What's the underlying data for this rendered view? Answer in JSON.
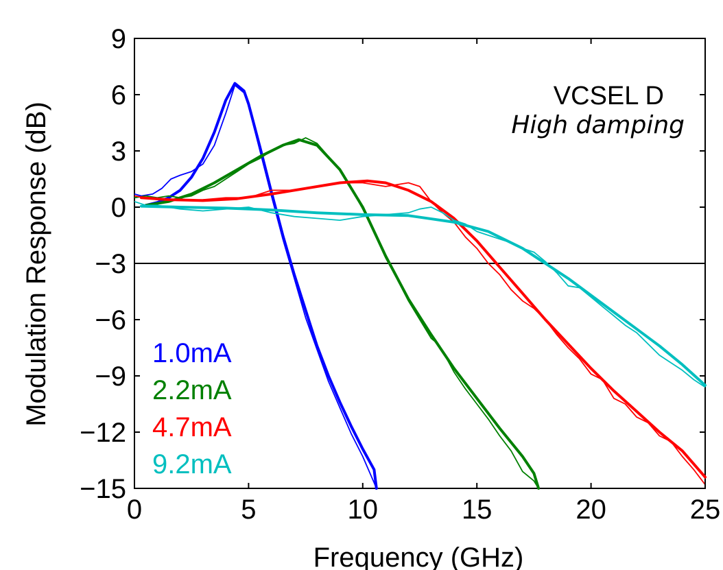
{
  "chart_data": {
    "type": "line",
    "title": "",
    "xlabel": "Frequency (GHz)",
    "ylabel": "Modulation Response (dB)",
    "xlim": [
      0,
      25
    ],
    "ylim": [
      -15,
      9
    ],
    "xticks": [
      0,
      5,
      10,
      15,
      20,
      25
    ],
    "xtick_labels": [
      "0",
      "5",
      "10",
      "15",
      "20",
      "25"
    ],
    "yticks": [
      9,
      6,
      3,
      0,
      -3,
      -6,
      -9,
      -12,
      -15
    ],
    "ytick_labels": [
      "9",
      "6",
      "3",
      "0",
      "−3",
      "−6",
      "−9",
      "−12",
      "−15"
    ],
    "grid": false,
    "legend_position": "bottom-left",
    "reference_line": {
      "y": -3,
      "color": "#000000"
    },
    "annotations": {
      "line1": "VCSEL D",
      "line2": "High damping"
    },
    "series": [
      {
        "name": "1.0mA",
        "color": "#0000ff",
        "fit": [
          [
            0.5,
            0.1
          ],
          [
            1.0,
            0.25
          ],
          [
            1.5,
            0.5
          ],
          [
            2.0,
            0.9
          ],
          [
            2.5,
            1.6
          ],
          [
            3.0,
            2.6
          ],
          [
            3.5,
            4.0
          ],
          [
            4.0,
            5.7
          ],
          [
            4.4,
            6.6
          ],
          [
            4.8,
            6.2
          ],
          [
            5.0,
            5.5
          ],
          [
            5.5,
            3.2
          ],
          [
            6.0,
            0.8
          ],
          [
            6.5,
            -1.5
          ],
          [
            7.0,
            -3.6
          ],
          [
            7.5,
            -5.5
          ],
          [
            8.0,
            -7.4
          ],
          [
            8.5,
            -9.0
          ],
          [
            9.0,
            -10.4
          ],
          [
            9.5,
            -11.7
          ],
          [
            10.0,
            -12.9
          ],
          [
            10.5,
            -14.0
          ],
          [
            10.6,
            -15.0
          ]
        ],
        "measured": [
          [
            0.0,
            0.7
          ],
          [
            0.3,
            0.6
          ],
          [
            0.8,
            0.7
          ],
          [
            1.2,
            1.0
          ],
          [
            1.6,
            1.5
          ],
          [
            2.0,
            1.7
          ],
          [
            2.5,
            1.9
          ],
          [
            3.0,
            2.3
          ],
          [
            3.5,
            3.3
          ],
          [
            4.0,
            5.0
          ],
          [
            4.4,
            6.5
          ],
          [
            4.8,
            6.1
          ],
          [
            5.0,
            5.4
          ],
          [
            5.5,
            3.0
          ],
          [
            6.0,
            0.6
          ],
          [
            6.5,
            -1.7
          ],
          [
            7.0,
            -3.8
          ],
          [
            7.5,
            -5.9
          ],
          [
            8.0,
            -7.6
          ],
          [
            8.5,
            -9.3
          ],
          [
            9.0,
            -10.7
          ],
          [
            9.5,
            -12.1
          ],
          [
            10.0,
            -13.3
          ],
          [
            10.5,
            -14.7
          ],
          [
            10.6,
            -15.0
          ]
        ]
      },
      {
        "name": "2.2mA",
        "color": "#008000",
        "fit": [
          [
            0.5,
            0.1
          ],
          [
            1.5,
            0.3
          ],
          [
            2.5,
            0.7
          ],
          [
            3.5,
            1.3
          ],
          [
            4.5,
            2.0
          ],
          [
            5.5,
            2.7
          ],
          [
            6.5,
            3.3
          ],
          [
            7.2,
            3.6
          ],
          [
            8.0,
            3.3
          ],
          [
            9.0,
            2.0
          ],
          [
            10.0,
            0.0
          ],
          [
            11.0,
            -2.6
          ],
          [
            12.0,
            -4.9
          ],
          [
            13.0,
            -6.8
          ],
          [
            14.0,
            -8.6
          ],
          [
            15.0,
            -10.2
          ],
          [
            16.0,
            -11.8
          ],
          [
            17.0,
            -13.3
          ],
          [
            17.5,
            -14.2
          ],
          [
            17.7,
            -15.0
          ]
        ],
        "measured": [
          [
            0.0,
            0.5
          ],
          [
            0.5,
            0.6
          ],
          [
            1.0,
            0.5
          ],
          [
            1.5,
            0.6
          ],
          [
            2.0,
            0.5
          ],
          [
            2.5,
            0.6
          ],
          [
            3.0,
            0.9
          ],
          [
            3.5,
            1.1
          ],
          [
            4.0,
            1.5
          ],
          [
            4.5,
            1.9
          ],
          [
            5.0,
            2.3
          ],
          [
            5.5,
            2.6
          ],
          [
            6.0,
            3.0
          ],
          [
            6.5,
            3.3
          ],
          [
            7.0,
            3.4
          ],
          [
            7.5,
            3.7
          ],
          [
            8.0,
            3.4
          ],
          [
            8.5,
            2.7
          ],
          [
            9.0,
            2.0
          ],
          [
            9.5,
            1.0
          ],
          [
            10.0,
            -0.1
          ],
          [
            10.5,
            -1.3
          ],
          [
            11.0,
            -2.7
          ],
          [
            11.5,
            -3.8
          ],
          [
            12.0,
            -5.0
          ],
          [
            12.5,
            -6.0
          ],
          [
            13.0,
            -7.0
          ],
          [
            13.3,
            -7.3
          ],
          [
            13.6,
            -7.9
          ],
          [
            14.0,
            -8.8
          ],
          [
            14.5,
            -9.7
          ],
          [
            15.0,
            -10.5
          ],
          [
            15.5,
            -11.3
          ],
          [
            16.0,
            -12.2
          ],
          [
            16.5,
            -13.0
          ],
          [
            17.0,
            -14.1
          ],
          [
            17.5,
            -14.6
          ],
          [
            17.7,
            -15.0
          ]
        ]
      },
      {
        "name": "4.7mA",
        "color": "#ff0000",
        "fit": [
          [
            0.3,
            0.5
          ],
          [
            1.5,
            0.4
          ],
          [
            3.0,
            0.35
          ],
          [
            4.5,
            0.45
          ],
          [
            6.0,
            0.7
          ],
          [
            7.5,
            1.0
          ],
          [
            9.0,
            1.3
          ],
          [
            10.2,
            1.4
          ],
          [
            11.0,
            1.3
          ],
          [
            12.0,
            0.9
          ],
          [
            13.0,
            0.3
          ],
          [
            14.0,
            -0.6
          ],
          [
            15.0,
            -1.8
          ],
          [
            16.0,
            -3.2
          ],
          [
            17.0,
            -4.6
          ],
          [
            18.0,
            -6.0
          ],
          [
            19.0,
            -7.3
          ],
          [
            20.0,
            -8.6
          ],
          [
            21.0,
            -9.8
          ],
          [
            22.0,
            -10.9
          ],
          [
            23.0,
            -12.0
          ],
          [
            24.0,
            -13.0
          ],
          [
            25.0,
            -14.4
          ]
        ],
        "measured": [
          [
            0.0,
            0.6
          ],
          [
            0.5,
            0.5
          ],
          [
            1.0,
            0.4
          ],
          [
            2.0,
            0.35
          ],
          [
            3.0,
            0.4
          ],
          [
            4.0,
            0.5
          ],
          [
            5.0,
            0.5
          ],
          [
            6.0,
            0.9
          ],
          [
            7.0,
            0.9
          ],
          [
            8.0,
            1.1
          ],
          [
            9.0,
            1.3
          ],
          [
            10.0,
            1.3
          ],
          [
            11.0,
            1.1
          ],
          [
            12.0,
            1.3
          ],
          [
            12.5,
            1.1
          ],
          [
            13.0,
            0.3
          ],
          [
            13.5,
            -0.3
          ],
          [
            14.0,
            -0.8
          ],
          [
            14.5,
            -1.6
          ],
          [
            15.0,
            -2.2
          ],
          [
            15.5,
            -3.0
          ],
          [
            16.0,
            -3.6
          ],
          [
            16.5,
            -4.4
          ],
          [
            17.0,
            -5.0
          ],
          [
            17.5,
            -5.4
          ],
          [
            18.0,
            -6.0
          ],
          [
            18.5,
            -6.8
          ],
          [
            19.0,
            -7.5
          ],
          [
            19.5,
            -8.1
          ],
          [
            20.0,
            -8.9
          ],
          [
            20.5,
            -9.2
          ],
          [
            21.0,
            -10.2
          ],
          [
            21.5,
            -10.5
          ],
          [
            22.0,
            -11.2
          ],
          [
            22.5,
            -11.5
          ],
          [
            23.0,
            -12.2
          ],
          [
            23.5,
            -12.5
          ],
          [
            24.0,
            -13.3
          ],
          [
            24.5,
            -14.0
          ],
          [
            25.0,
            -14.8
          ]
        ]
      },
      {
        "name": "9.2mA",
        "color": "#00bfbf",
        "fit": [
          [
            0.3,
            0.05
          ],
          [
            2.0,
            0.0
          ],
          [
            4.0,
            -0.05
          ],
          [
            6.0,
            -0.15
          ],
          [
            8.0,
            -0.3
          ],
          [
            10.0,
            -0.4
          ],
          [
            12.0,
            -0.45
          ],
          [
            14.0,
            -0.8
          ],
          [
            15.5,
            -1.3
          ],
          [
            17.0,
            -2.2
          ],
          [
            18.0,
            -3.0
          ],
          [
            19.0,
            -3.8
          ],
          [
            20.0,
            -4.7
          ],
          [
            21.0,
            -5.6
          ],
          [
            22.0,
            -6.5
          ],
          [
            23.0,
            -7.4
          ],
          [
            24.0,
            -8.4
          ],
          [
            25.0,
            -9.5
          ]
        ],
        "measured": [
          [
            0.0,
            0.3
          ],
          [
            0.5,
            0.1
          ],
          [
            1.0,
            0.1
          ],
          [
            2.0,
            -0.1
          ],
          [
            3.0,
            -0.2
          ],
          [
            4.0,
            -0.1
          ],
          [
            5.0,
            0.0
          ],
          [
            6.0,
            -0.3
          ],
          [
            7.0,
            -0.5
          ],
          [
            8.0,
            -0.6
          ],
          [
            9.0,
            -0.7
          ],
          [
            10.0,
            -0.5
          ],
          [
            11.0,
            -0.4
          ],
          [
            12.0,
            -0.3
          ],
          [
            12.5,
            -0.1
          ],
          [
            13.0,
            0.0
          ],
          [
            13.5,
            -0.3
          ],
          [
            14.0,
            -0.7
          ],
          [
            14.5,
            -0.9
          ],
          [
            15.0,
            -1.3
          ],
          [
            15.5,
            -1.5
          ],
          [
            16.0,
            -1.7
          ],
          [
            16.5,
            -1.9
          ],
          [
            17.0,
            -2.2
          ],
          [
            17.5,
            -2.4
          ],
          [
            18.0,
            -2.9
          ],
          [
            18.5,
            -3.5
          ],
          [
            19.0,
            -4.2
          ],
          [
            19.5,
            -4.3
          ],
          [
            20.0,
            -4.8
          ],
          [
            20.5,
            -5.3
          ],
          [
            21.0,
            -5.8
          ],
          [
            21.5,
            -6.3
          ],
          [
            22.0,
            -6.7
          ],
          [
            22.5,
            -7.3
          ],
          [
            23.0,
            -7.9
          ],
          [
            23.5,
            -8.3
          ],
          [
            24.0,
            -8.7
          ],
          [
            24.5,
            -9.2
          ],
          [
            25.0,
            -9.6
          ]
        ]
      }
    ]
  }
}
